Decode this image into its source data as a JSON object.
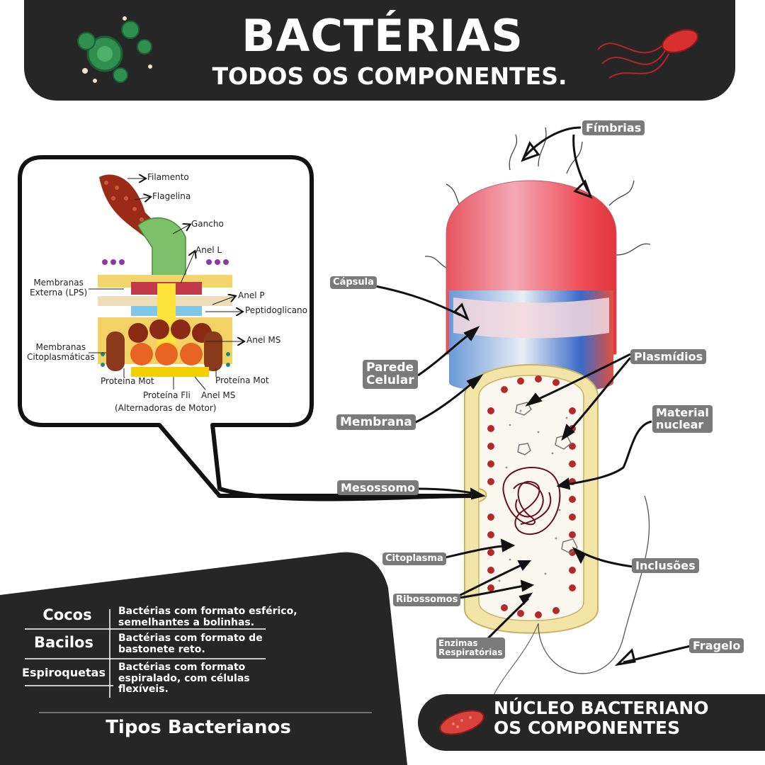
{
  "header": {
    "title": "BACTÉRIAS",
    "subtitle": "TODOS OS COMPONENTES."
  },
  "callouts": {
    "fimbrias": "Fímbrias",
    "capsula": "Cápsula",
    "parede_line1": "Parede",
    "parede_line2": "Celular",
    "membrana": "Membrana",
    "plasmidios": "Plasmídios",
    "material_line1": "Material",
    "material_line2": "nuclear",
    "mesossomo": "Mesossomo",
    "citoplasma": "Citoplasma",
    "inclusoes": "Inclusões",
    "ribossomos": "Ribossomos",
    "enzimas_line1": "Enzimas",
    "enzimas_line2": "Respiratórias",
    "fragelo": "Fragelo"
  },
  "flagellum_inset": {
    "filamento": "Filamento",
    "flagelina": "Flagelina",
    "gancho": "Gancho",
    "anel_l": "Anel L",
    "membranas_externa_line1": "Membranas",
    "membranas_externa_line2": "Externa (LPS)",
    "anel_p": "Anel P",
    "peptidoglicano": "Peptidoglicano",
    "anel_ms_right": "Anel MS",
    "membranas_cito_line1": "Membranas",
    "membranas_cito_line2": "Citoplasmáticas",
    "proteina_mot_left": "Proteína Mot",
    "proteina_mot_right": "Proteína Mot",
    "proteina_fli": "Proteína Fli",
    "anel_ms_bottom": "Anel MS",
    "alternadoras": "(Alternadoras de Motor)"
  },
  "types_table": {
    "rows": [
      {
        "name": "Cocos",
        "desc_line1": "Bactérias com formato esférico,",
        "desc_line2": "semelhantes a bolinhas.",
        "desc_line3": ""
      },
      {
        "name": "Bacilos",
        "desc_line1": "Bactérias com formato de",
        "desc_line2": "bastonete reto.",
        "desc_line3": ""
      },
      {
        "name": "Espiroquetas",
        "desc_line1": "Bactérias com formato",
        "desc_line2": "espiralado, com células",
        "desc_line3": "flexíveis."
      }
    ],
    "title": "Tipos Bacterianos"
  },
  "nucleo_banner": {
    "line1": "NÚCLEO BACTERIANO",
    "line2": "OS COMPONENTES"
  },
  "colors": {
    "dark": "#262626",
    "label_gray": "#7a7a7a",
    "capsule_red": "#e8364a",
    "cell_wall_blue": "#5f8fd6",
    "ribosome_red": "#b42a2a",
    "cytoplasm": "#f7f3ea"
  }
}
